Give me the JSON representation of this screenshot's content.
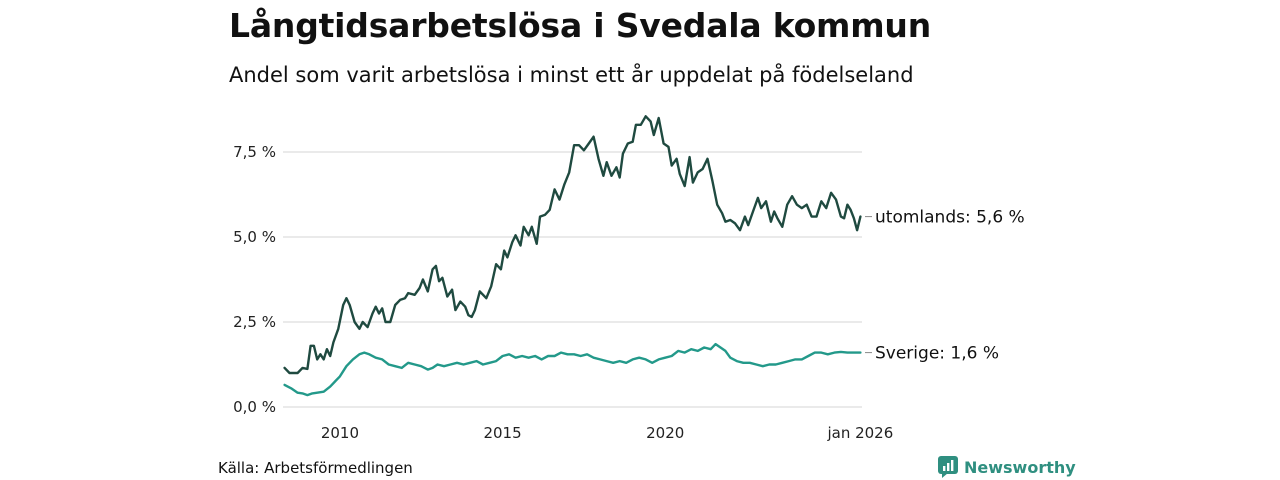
{
  "title": "Långtidsarbetslösa i Svedala kommun",
  "subtitle": "Andel som varit arbetslösa i minst ett år uppdelat på födelseland",
  "source": "Källa: Arbetsförmedlingen",
  "brand": "Newsworthy",
  "colors": {
    "utomlands": "#1f4a40",
    "sverige": "#23998a",
    "grid": "#dddddd",
    "brand": "#2f8f80"
  },
  "chart_data": {
    "type": "line",
    "title": "Långtidsarbetslösa i Svedala kommun",
    "xlabel": "",
    "ylabel": "",
    "xlim": [
      2008.25,
      2026.05
    ],
    "ylim": [
      0,
      8.5
    ],
    "yticks": [
      0,
      2.5,
      5,
      7.5
    ],
    "ytick_labels": [
      "0,0 %",
      "2,5 %",
      "5,0 %",
      "7,5 %"
    ],
    "xticks": [
      2010,
      2015,
      2020,
      2026
    ],
    "xtick_labels": [
      "2010",
      "2015",
      "2020",
      "jan 2026"
    ],
    "grid": true,
    "series": [
      {
        "name": "utomlands",
        "end_label": "utomlands: 5,6 %",
        "points": [
          [
            2008.3,
            1.15
          ],
          [
            2008.45,
            1.0
          ],
          [
            2008.7,
            1.0
          ],
          [
            2008.85,
            1.15
          ],
          [
            2009.0,
            1.12
          ],
          [
            2009.1,
            1.8
          ],
          [
            2009.2,
            1.8
          ],
          [
            2009.3,
            1.4
          ],
          [
            2009.4,
            1.55
          ],
          [
            2009.5,
            1.4
          ],
          [
            2009.6,
            1.7
          ],
          [
            2009.7,
            1.5
          ],
          [
            2009.8,
            1.9
          ],
          [
            2009.95,
            2.3
          ],
          [
            2010.1,
            3.0
          ],
          [
            2010.2,
            3.2
          ],
          [
            2010.3,
            3.0
          ],
          [
            2010.45,
            2.5
          ],
          [
            2010.6,
            2.3
          ],
          [
            2010.7,
            2.5
          ],
          [
            2010.85,
            2.35
          ],
          [
            2011.0,
            2.75
          ],
          [
            2011.1,
            2.95
          ],
          [
            2011.2,
            2.75
          ],
          [
            2011.3,
            2.9
          ],
          [
            2011.4,
            2.5
          ],
          [
            2011.55,
            2.5
          ],
          [
            2011.7,
            3.0
          ],
          [
            2011.85,
            3.15
          ],
          [
            2012.0,
            3.2
          ],
          [
            2012.1,
            3.35
          ],
          [
            2012.3,
            3.3
          ],
          [
            2012.45,
            3.5
          ],
          [
            2012.55,
            3.75
          ],
          [
            2012.7,
            3.4
          ],
          [
            2012.85,
            4.05
          ],
          [
            2012.95,
            4.15
          ],
          [
            2013.05,
            3.7
          ],
          [
            2013.15,
            3.8
          ],
          [
            2013.3,
            3.25
          ],
          [
            2013.45,
            3.45
          ],
          [
            2013.55,
            2.85
          ],
          [
            2013.7,
            3.1
          ],
          [
            2013.85,
            2.95
          ],
          [
            2013.95,
            2.7
          ],
          [
            2014.05,
            2.65
          ],
          [
            2014.15,
            2.85
          ],
          [
            2014.3,
            3.4
          ],
          [
            2014.5,
            3.2
          ],
          [
            2014.65,
            3.55
          ],
          [
            2014.8,
            4.2
          ],
          [
            2014.95,
            4.05
          ],
          [
            2015.05,
            4.6
          ],
          [
            2015.15,
            4.4
          ],
          [
            2015.3,
            4.85
          ],
          [
            2015.4,
            5.05
          ],
          [
            2015.55,
            4.75
          ],
          [
            2015.65,
            5.3
          ],
          [
            2015.8,
            5.05
          ],
          [
            2015.9,
            5.3
          ],
          [
            2016.05,
            4.8
          ],
          [
            2016.15,
            5.6
          ],
          [
            2016.3,
            5.65
          ],
          [
            2016.45,
            5.8
          ],
          [
            2016.6,
            6.4
          ],
          [
            2016.75,
            6.1
          ],
          [
            2016.9,
            6.55
          ],
          [
            2017.05,
            6.9
          ],
          [
            2017.2,
            7.7
          ],
          [
            2017.35,
            7.7
          ],
          [
            2017.5,
            7.55
          ],
          [
            2017.65,
            7.75
          ],
          [
            2017.8,
            7.95
          ],
          [
            2017.95,
            7.3
          ],
          [
            2018.1,
            6.8
          ],
          [
            2018.2,
            7.2
          ],
          [
            2018.35,
            6.8
          ],
          [
            2018.5,
            7.05
          ],
          [
            2018.6,
            6.75
          ],
          [
            2018.7,
            7.45
          ],
          [
            2018.85,
            7.75
          ],
          [
            2019.0,
            7.8
          ],
          [
            2019.1,
            8.3
          ],
          [
            2019.25,
            8.3
          ],
          [
            2019.4,
            8.55
          ],
          [
            2019.55,
            8.4
          ],
          [
            2019.65,
            8.0
          ],
          [
            2019.8,
            8.5
          ],
          [
            2019.95,
            7.75
          ],
          [
            2020.1,
            7.65
          ],
          [
            2020.2,
            7.1
          ],
          [
            2020.35,
            7.3
          ],
          [
            2020.45,
            6.85
          ],
          [
            2020.6,
            6.5
          ],
          [
            2020.75,
            7.35
          ],
          [
            2020.85,
            6.6
          ],
          [
            2021.0,
            6.9
          ],
          [
            2021.15,
            7.0
          ],
          [
            2021.3,
            7.3
          ],
          [
            2021.45,
            6.65
          ],
          [
            2021.6,
            5.95
          ],
          [
            2021.75,
            5.7
          ],
          [
            2021.85,
            5.45
          ],
          [
            2022.0,
            5.5
          ],
          [
            2022.15,
            5.4
          ],
          [
            2022.3,
            5.2
          ],
          [
            2022.45,
            5.6
          ],
          [
            2022.55,
            5.35
          ],
          [
            2022.7,
            5.75
          ],
          [
            2022.85,
            6.15
          ],
          [
            2022.95,
            5.85
          ],
          [
            2023.1,
            6.05
          ],
          [
            2023.25,
            5.45
          ],
          [
            2023.35,
            5.75
          ],
          [
            2023.45,
            5.55
          ],
          [
            2023.6,
            5.3
          ],
          [
            2023.75,
            5.95
          ],
          [
            2023.9,
            6.2
          ],
          [
            2024.05,
            5.95
          ],
          [
            2024.2,
            5.85
          ],
          [
            2024.35,
            5.95
          ],
          [
            2024.5,
            5.6
          ],
          [
            2024.65,
            5.6
          ],
          [
            2024.8,
            6.05
          ],
          [
            2024.95,
            5.85
          ],
          [
            2025.1,
            6.3
          ],
          [
            2025.25,
            6.1
          ],
          [
            2025.4,
            5.6
          ],
          [
            2025.5,
            5.55
          ],
          [
            2025.6,
            5.95
          ],
          [
            2025.7,
            5.8
          ],
          [
            2025.8,
            5.55
          ],
          [
            2025.9,
            5.2
          ],
          [
            2026.0,
            5.6
          ]
        ]
      },
      {
        "name": "Sverige",
        "end_label": "Sverige: 1,6 %",
        "points": [
          [
            2008.3,
            0.65
          ],
          [
            2008.5,
            0.55
          ],
          [
            2008.7,
            0.42
          ],
          [
            2008.85,
            0.4
          ],
          [
            2009.0,
            0.35
          ],
          [
            2009.15,
            0.4
          ],
          [
            2009.3,
            0.42
          ],
          [
            2009.5,
            0.45
          ],
          [
            2009.7,
            0.6
          ],
          [
            2009.85,
            0.75
          ],
          [
            2010.0,
            0.9
          ],
          [
            2010.2,
            1.2
          ],
          [
            2010.4,
            1.4
          ],
          [
            2010.6,
            1.55
          ],
          [
            2010.75,
            1.6
          ],
          [
            2010.9,
            1.55
          ],
          [
            2011.1,
            1.45
          ],
          [
            2011.3,
            1.4
          ],
          [
            2011.5,
            1.25
          ],
          [
            2011.7,
            1.2
          ],
          [
            2011.9,
            1.15
          ],
          [
            2012.1,
            1.3
          ],
          [
            2012.3,
            1.25
          ],
          [
            2012.5,
            1.2
          ],
          [
            2012.7,
            1.1
          ],
          [
            2012.85,
            1.15
          ],
          [
            2013.0,
            1.25
          ],
          [
            2013.2,
            1.2
          ],
          [
            2013.4,
            1.25
          ],
          [
            2013.6,
            1.3
          ],
          [
            2013.8,
            1.25
          ],
          [
            2014.0,
            1.3
          ],
          [
            2014.2,
            1.35
          ],
          [
            2014.4,
            1.25
          ],
          [
            2014.6,
            1.3
          ],
          [
            2014.8,
            1.35
          ],
          [
            2015.0,
            1.5
          ],
          [
            2015.2,
            1.55
          ],
          [
            2015.4,
            1.45
          ],
          [
            2015.6,
            1.5
          ],
          [
            2015.8,
            1.45
          ],
          [
            2016.0,
            1.5
          ],
          [
            2016.2,
            1.4
          ],
          [
            2016.4,
            1.5
          ],
          [
            2016.6,
            1.5
          ],
          [
            2016.8,
            1.6
          ],
          [
            2017.0,
            1.55
          ],
          [
            2017.2,
            1.55
          ],
          [
            2017.4,
            1.5
          ],
          [
            2017.6,
            1.55
          ],
          [
            2017.8,
            1.45
          ],
          [
            2018.0,
            1.4
          ],
          [
            2018.2,
            1.35
          ],
          [
            2018.4,
            1.3
          ],
          [
            2018.6,
            1.35
          ],
          [
            2018.8,
            1.3
          ],
          [
            2019.0,
            1.4
          ],
          [
            2019.2,
            1.45
          ],
          [
            2019.4,
            1.4
          ],
          [
            2019.6,
            1.3
          ],
          [
            2019.8,
            1.4
          ],
          [
            2020.0,
            1.45
          ],
          [
            2020.2,
            1.5
          ],
          [
            2020.4,
            1.65
          ],
          [
            2020.6,
            1.6
          ],
          [
            2020.8,
            1.7
          ],
          [
            2021.0,
            1.65
          ],
          [
            2021.2,
            1.75
          ],
          [
            2021.4,
            1.7
          ],
          [
            2021.55,
            1.85
          ],
          [
            2021.7,
            1.75
          ],
          [
            2021.85,
            1.65
          ],
          [
            2022.0,
            1.45
          ],
          [
            2022.2,
            1.35
          ],
          [
            2022.4,
            1.3
          ],
          [
            2022.6,
            1.3
          ],
          [
            2022.8,
            1.25
          ],
          [
            2023.0,
            1.2
          ],
          [
            2023.2,
            1.25
          ],
          [
            2023.4,
            1.25
          ],
          [
            2023.6,
            1.3
          ],
          [
            2023.8,
            1.35
          ],
          [
            2024.0,
            1.4
          ],
          [
            2024.2,
            1.4
          ],
          [
            2024.4,
            1.5
          ],
          [
            2024.6,
            1.6
          ],
          [
            2024.8,
            1.6
          ],
          [
            2025.0,
            1.55
          ],
          [
            2025.2,
            1.6
          ],
          [
            2025.4,
            1.62
          ],
          [
            2025.6,
            1.6
          ],
          [
            2025.8,
            1.6
          ],
          [
            2026.0,
            1.6
          ]
        ]
      }
    ]
  }
}
